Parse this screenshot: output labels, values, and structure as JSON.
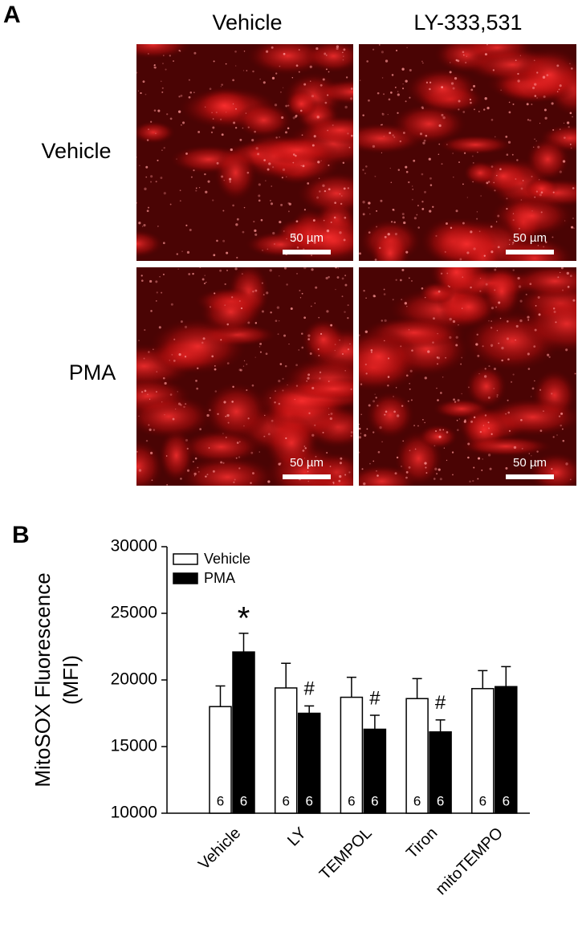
{
  "panel_a": {
    "label": "A",
    "columns": [
      "Vehicle",
      "LY-333,531"
    ],
    "rows": [
      "Vehicle",
      "PMA"
    ],
    "scale_bar": "50 µm"
  },
  "chart_data": {
    "type": "bar",
    "panel_label": "B",
    "ylabel": [
      "MitoSOX Fluorescence",
      "(MFI)"
    ],
    "categories": [
      "Vehicle",
      "LY",
      "TEMPOL",
      "Tiron",
      "mitoTEMPO"
    ],
    "series": [
      {
        "name": "Vehicle",
        "color": "#ffffff",
        "values": [
          18000,
          19400,
          18700,
          18600,
          19350
        ],
        "errors": [
          1550,
          1850,
          1500,
          1500,
          1350
        ],
        "n": [
          6,
          6,
          6,
          6,
          6
        ]
      },
      {
        "name": "PMA",
        "color": "#000000",
        "values": [
          22100,
          17500,
          16300,
          16100,
          19500
        ],
        "errors": [
          1400,
          550,
          1050,
          900,
          1500
        ],
        "n": [
          6,
          6,
          6,
          6,
          6
        ],
        "markers": [
          "*",
          "#",
          "#",
          "#",
          null
        ]
      }
    ],
    "ylim": [
      10000,
      30000
    ],
    "yticks": [
      10000,
      15000,
      20000,
      25000,
      30000
    ],
    "grid": false,
    "legend": "top-left"
  }
}
